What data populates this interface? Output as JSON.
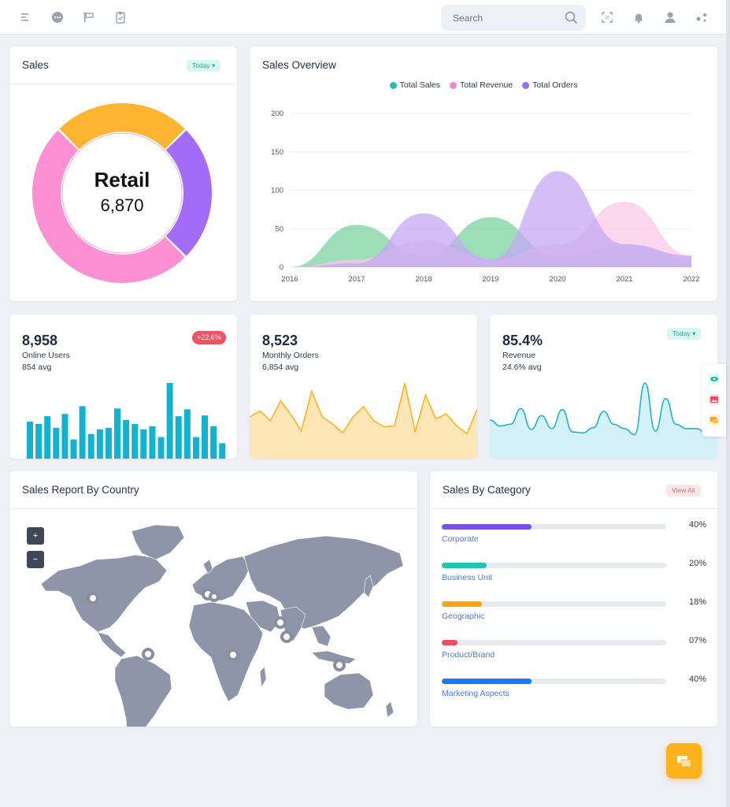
{
  "topbar": {
    "icons": [
      "menu-icon",
      "chat-bubble-icon",
      "flag-icon",
      "clipboard-icon"
    ],
    "search_placeholder": "Search",
    "right_icons": [
      "fullscreen-icon",
      "bell-icon",
      "user-icon",
      "settings-icon"
    ]
  },
  "sales": {
    "title": "Sales",
    "filter": "Today ▾",
    "center_label": "Retail",
    "center_value": "6,870",
    "segments": [
      {
        "color": "#ffb531",
        "value": 0.25
      },
      {
        "color": "#a26bf8",
        "value": 0.25
      },
      {
        "color": "#fd90d2",
        "value": 0.5
      }
    ]
  },
  "overview": {
    "title": "Sales Overview",
    "legend": [
      {
        "name": "Total Sales",
        "color": "#1fc0b3"
      },
      {
        "name": "Total Revenue",
        "color": "#f785d0"
      },
      {
        "name": "Total Orders",
        "color": "#9b6df2"
      }
    ]
  },
  "chart_data": {
    "type": "area",
    "x": [
      "2016",
      "2017",
      "2018",
      "2019",
      "2020",
      "2021",
      "2022"
    ],
    "ylim": [
      0,
      200
    ],
    "yticks": [
      "200",
      "150",
      "100",
      "50",
      "0"
    ],
    "series": [
      {
        "name": "Total Sales",
        "color": "#7cd3a0",
        "values": [
          0,
          55,
          15,
          65,
          15,
          30,
          10
        ]
      },
      {
        "name": "Total Revenue",
        "color": "#f9c8e6",
        "values": [
          0,
          10,
          35,
          10,
          30,
          85,
          15
        ]
      },
      {
        "name": "Total Orders",
        "color": "#c4a8f5",
        "values": [
          0,
          5,
          70,
          10,
          125,
          30,
          15
        ]
      }
    ]
  },
  "stats": [
    {
      "value": "8,958",
      "label": "Online Users",
      "avg": "854 avg",
      "badge": "+22,6%"
    },
    {
      "value": "8,523",
      "label": "Monthly Orders",
      "avg": "6,854 avg"
    },
    {
      "value": "85.4%",
      "label": "Revenue",
      "avg": "24.6% avg",
      "filter": "Today ▾"
    }
  ],
  "online_users_bars": [
    48,
    45,
    55,
    40,
    58,
    25,
    68,
    32,
    38,
    40,
    65,
    50,
    45,
    38,
    42,
    28,
    98,
    55,
    64,
    28,
    56,
    42,
    20
  ],
  "orders_line": [
    42,
    48,
    38,
    58,
    44,
    28,
    68,
    42,
    35,
    26,
    42,
    52,
    38,
    32,
    33,
    76,
    27,
    64,
    40,
    45,
    33,
    25,
    50
  ],
  "revenue_line": [
    45,
    38,
    40,
    58,
    34,
    50,
    35,
    57,
    31,
    30,
    36,
    55,
    40,
    35,
    28,
    88,
    32,
    70,
    40,
    35,
    35,
    28,
    48
  ],
  "country": {
    "title": "Sales Report By Country",
    "zoom_in": "+",
    "zoom_out": "−"
  },
  "category": {
    "title": "Sales By Category",
    "view_all": "View All",
    "items": [
      {
        "name": "Corporate",
        "pct": "40%",
        "fill": 0.4,
        "color": "#7b4ff0"
      },
      {
        "name": "Business Unit",
        "pct": "20%",
        "fill": 0.2,
        "color": "#1fc4b4"
      },
      {
        "name": "Geographic",
        "pct": "18%",
        "fill": 0.18,
        "color": "#ffa40c"
      },
      {
        "name": "Product/Brand",
        "pct": "07%",
        "fill": 0.07,
        "color": "#f24a5e"
      },
      {
        "name": "Marketing Aspects",
        "pct": "40%",
        "fill": 0.4,
        "color": "#1d7af3"
      }
    ]
  }
}
